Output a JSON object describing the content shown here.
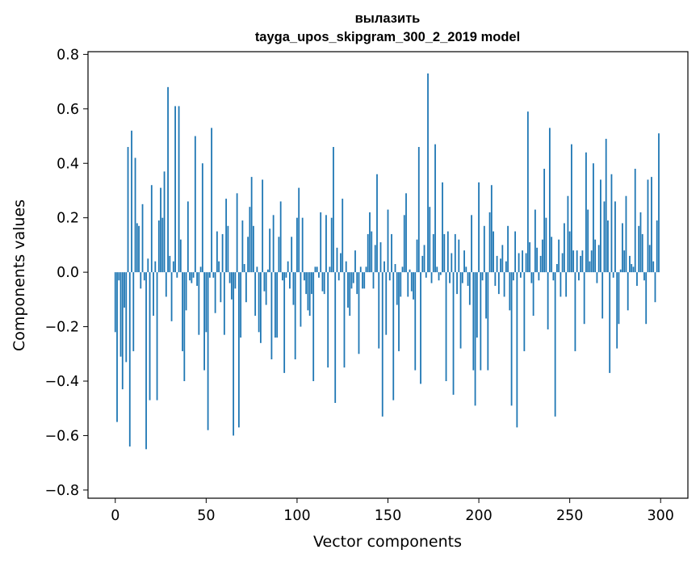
{
  "chart_data": {
    "type": "bar",
    "title": "вылазить",
    "subtitle": "tayga_upos_skipgram_300_2_2019 model",
    "xlabel": "Vector components",
    "ylabel": "Components values",
    "xlim": [
      -15,
      315
    ],
    "ylim": [
      -0.83,
      0.81
    ],
    "x_ticks": [
      0,
      50,
      100,
      150,
      200,
      250,
      300
    ],
    "x_tick_labels": [
      "0",
      "50",
      "100",
      "150",
      "200",
      "250",
      "300"
    ],
    "y_ticks": [
      0.8,
      0.6,
      0.4,
      0.2,
      0.0,
      -0.2,
      -0.4,
      -0.6,
      -0.8
    ],
    "y_tick_labels": [
      "0.8",
      "0.6",
      "0.4",
      "0.2",
      "0.0",
      "−0.2",
      "−0.4",
      "−0.6",
      "−0.8"
    ],
    "grid": false,
    "legend": "none",
    "bar_color": "#1f77b4",
    "values": [
      -0.22,
      -0.55,
      -0.03,
      -0.31,
      -0.43,
      -0.13,
      -0.33,
      0.46,
      -0.64,
      0.52,
      -0.29,
      0.42,
      0.18,
      0.17,
      -0.06,
      0.25,
      -0.03,
      -0.65,
      0.05,
      -0.47,
      0.32,
      -0.16,
      0.04,
      -0.47,
      0.19,
      0.31,
      0.2,
      0.37,
      -0.09,
      0.68,
      0.06,
      -0.18,
      0.04,
      0.61,
      -0.02,
      0.61,
      0.12,
      -0.29,
      -0.4,
      -0.14,
      0.26,
      -0.03,
      -0.04,
      -0.02,
      0.5,
      -0.05,
      -0.23,
      0.02,
      0.4,
      -0.36,
      -0.22,
      -0.58,
      -0.02,
      0.53,
      -0.02,
      -0.15,
      0.15,
      0.04,
      -0.11,
      0.14,
      -0.23,
      0.27,
      0.17,
      -0.04,
      -0.1,
      -0.6,
      -0.06,
      0.29,
      -0.57,
      -0.24,
      0.19,
      0.03,
      -0.11,
      0.13,
      0.24,
      0.35,
      0.17,
      -0.16,
      0.02,
      -0.22,
      -0.26,
      0.34,
      -0.07,
      -0.12,
      0.01,
      0.16,
      -0.32,
      0.21,
      -0.24,
      -0.24,
      0.13,
      0.26,
      -0.03,
      -0.37,
      -0.02,
      0.04,
      -0.06,
      0.13,
      -0.12,
      -0.32,
      0.2,
      0.31,
      -0.2,
      0.2,
      -0.03,
      -0.08,
      -0.14,
      -0.16,
      -0.08,
      -0.4,
      0.02,
      0.02,
      -0.02,
      0.22,
      -0.07,
      -0.08,
      0.21,
      -0.35,
      0.02,
      0.2,
      0.46,
      -0.48,
      0.09,
      -0.03,
      0.07,
      0.27,
      -0.35,
      0.04,
      -0.13,
      -0.16,
      -0.06,
      -0.04,
      0.08,
      -0.08,
      -0.3,
      0.02,
      -0.06,
      -0.06,
      0.02,
      0.14,
      0.22,
      0.15,
      -0.06,
      0.1,
      0.36,
      -0.28,
      0.11,
      -0.53,
      0.04,
      -0.23,
      0.23,
      -0.03,
      0.14,
      -0.47,
      0.03,
      -0.12,
      -0.29,
      -0.09,
      0.02,
      0.21,
      0.29,
      -0.09,
      0.01,
      -0.07,
      -0.1,
      -0.36,
      0.12,
      0.46,
      -0.41,
      0.06,
      0.1,
      -0.02,
      0.73,
      0.24,
      -0.04,
      0.14,
      0.47,
      0.02,
      -0.03,
      -0.01,
      0.33,
      0.14,
      -0.4,
      0.15,
      -0.04,
      0.07,
      -0.45,
      0.14,
      -0.08,
      0.12,
      -0.28,
      -0.04,
      0.08,
      0.02,
      -0.05,
      -0.12,
      0.21,
      -0.36,
      -0.49,
      -0.24,
      0.33,
      -0.36,
      -0.03,
      0.17,
      -0.17,
      -0.36,
      0.22,
      0.32,
      0.15,
      -0.05,
      0.06,
      -0.08,
      0.05,
      0.1,
      -0.09,
      0.04,
      0.17,
      -0.14,
      -0.49,
      -0.03,
      0.15,
      -0.57,
      0.07,
      -0.02,
      0.08,
      -0.29,
      0.07,
      0.59,
      0.11,
      -0.04,
      -0.16,
      0.23,
      0.09,
      -0.03,
      0.06,
      0.12,
      0.38,
      0.2,
      -0.21,
      0.53,
      0.13,
      -0.03,
      -0.53,
      0.03,
      0.12,
      -0.09,
      0.07,
      0.18,
      -0.09,
      0.28,
      0.15,
      0.47,
      0.08,
      -0.29,
      0.08,
      -0.03,
      0.06,
      0.08,
      -0.19,
      0.44,
      0.23,
      0.04,
      0.08,
      0.4,
      0.12,
      -0.04,
      0.1,
      0.34,
      -0.17,
      0.26,
      0.49,
      0.19,
      -0.37,
      0.36,
      -0.02,
      0.26,
      -0.28,
      -0.19,
      0.01,
      0.18,
      0.08,
      0.28,
      -0.14,
      0.06,
      0.03,
      0.02,
      0.38,
      -0.05,
      0.17,
      0.22,
      0.14,
      -0.03,
      -0.19,
      0.34,
      0.1,
      0.35,
      0.04,
      -0.11,
      0.19,
      0.51
    ]
  }
}
